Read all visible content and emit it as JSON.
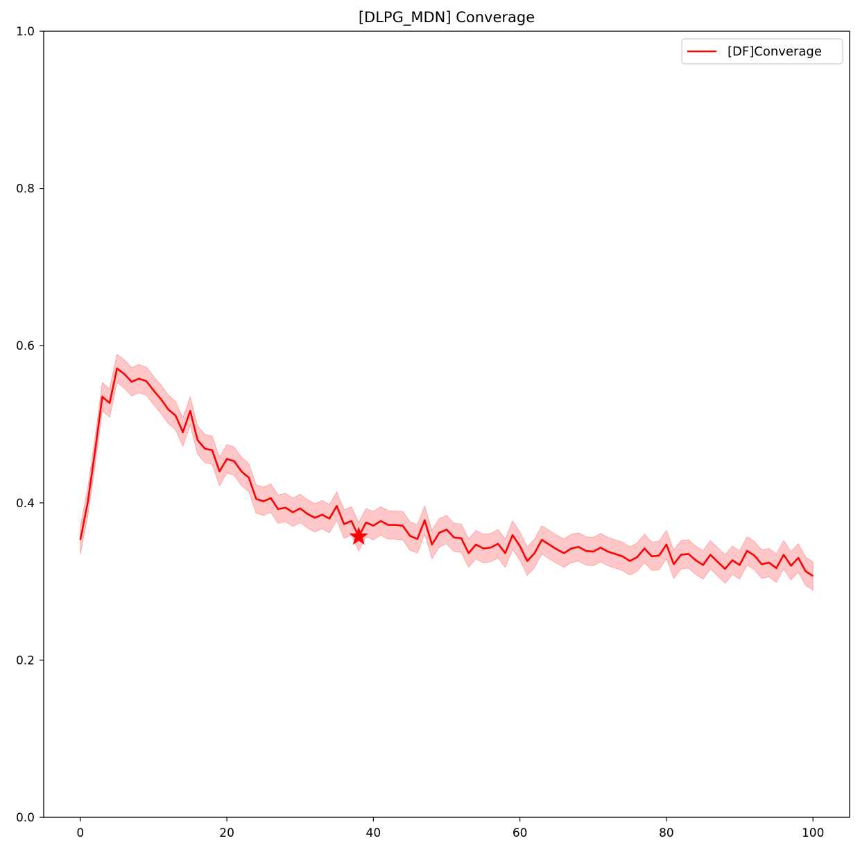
{
  "chart_data": {
    "type": "line",
    "title": "[DLPG_MDN] Converage",
    "xlabel": "",
    "ylabel": "",
    "xlim": [
      -5,
      105
    ],
    "ylim": [
      0,
      1.0
    ],
    "x_ticks": [
      0,
      20,
      40,
      60,
      80,
      100
    ],
    "x_tick_labels": [
      "0",
      "20",
      "40",
      "60",
      "80",
      "100"
    ],
    "y_ticks": [
      0.0,
      0.2,
      0.4,
      0.6,
      0.8,
      1.0
    ],
    "y_tick_labels": [
      "0.0",
      "0.2",
      "0.4",
      "0.6",
      "0.8",
      "1.0"
    ],
    "grid": false,
    "legend_position": "top-right",
    "series": [
      {
        "name": "[DF]Converage",
        "color": "#ff0000",
        "band_color": "#ff9999",
        "band_halfwidth": 0.018,
        "x_start": 0,
        "x_step": 1,
        "values": [
          0.353,
          0.4,
          0.465,
          0.535,
          0.527,
          0.571,
          0.564,
          0.554,
          0.558,
          0.555,
          0.543,
          0.532,
          0.519,
          0.511,
          0.49,
          0.517,
          0.48,
          0.469,
          0.467,
          0.44,
          0.456,
          0.453,
          0.44,
          0.432,
          0.405,
          0.402,
          0.406,
          0.392,
          0.394,
          0.388,
          0.393,
          0.386,
          0.381,
          0.385,
          0.38,
          0.396,
          0.373,
          0.377,
          0.357,
          0.375,
          0.371,
          0.377,
          0.372,
          0.372,
          0.371,
          0.358,
          0.354,
          0.378,
          0.347,
          0.362,
          0.366,
          0.356,
          0.355,
          0.336,
          0.347,
          0.342,
          0.343,
          0.348,
          0.336,
          0.359,
          0.345,
          0.326,
          0.336,
          0.353,
          0.347,
          0.341,
          0.336,
          0.342,
          0.344,
          0.339,
          0.338,
          0.343,
          0.338,
          0.335,
          0.332,
          0.326,
          0.331,
          0.342,
          0.332,
          0.333,
          0.347,
          0.322,
          0.334,
          0.335,
          0.327,
          0.321,
          0.334,
          0.325,
          0.316,
          0.327,
          0.321,
          0.339,
          0.333,
          0.322,
          0.324,
          0.317,
          0.334,
          0.32,
          0.33,
          0.313,
          0.307
        ]
      }
    ],
    "markers": [
      {
        "shape": "star",
        "x": 38,
        "y": 0.357,
        "color": "#ff0000"
      }
    ]
  }
}
